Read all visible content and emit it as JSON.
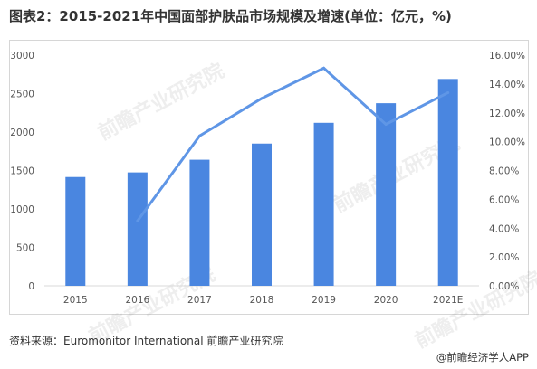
{
  "title": "图表2：2015-2021年中国面部护肤品市场规模及增速(单位：亿元，%)",
  "source": "资料来源：Euromonitor International 前瞻产业研究院",
  "credit": "@前瞻经济学人APP",
  "watermark": "前瞻产业研究院",
  "colors": {
    "bar": "#4a86e0",
    "line": "#5f96e6",
    "axis_text": "#555555",
    "grid": "#d9d9d9"
  },
  "chart_data": {
    "type": "bar",
    "title": "",
    "categories": [
      "2015",
      "2016",
      "2017",
      "2018",
      "2019",
      "2020",
      "2021E"
    ],
    "series": [
      {
        "type": "bar",
        "axis": "left",
        "values": [
          1415,
          1475,
          1640,
          1850,
          2120,
          2375,
          2690
        ]
      },
      {
        "type": "line",
        "axis": "right",
        "values": [
          null,
          4.5,
          10.4,
          13.0,
          15.1,
          11.2,
          13.4
        ]
      }
    ],
    "ylim_left": [
      0,
      3000
    ],
    "yticks_left": [
      "0",
      "500",
      "1000",
      "1500",
      "2000",
      "2500",
      "3000"
    ],
    "ylim_right": [
      0,
      16
    ],
    "yticks_right": [
      "0.00%",
      "2.00%",
      "4.00%",
      "6.00%",
      "8.00%",
      "10.00%",
      "12.00%",
      "14.00%",
      "16.00%"
    ],
    "grid": false,
    "legend": "none"
  }
}
